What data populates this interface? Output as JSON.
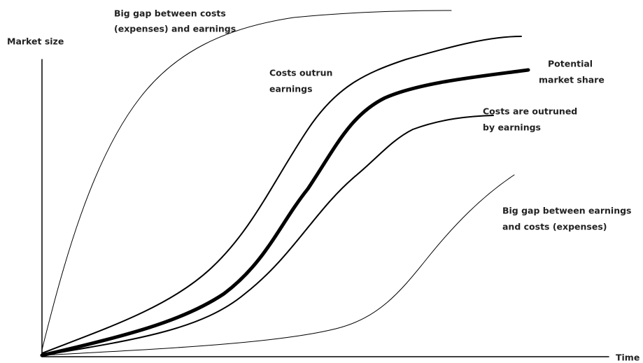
{
  "axes": {
    "y_label": "Market size",
    "x_label": "Time"
  },
  "annotations": {
    "big_gap_costs": [
      "Big gap between costs",
      "(expenses) and earnings"
    ],
    "costs_outrun": [
      "Costs outrun",
      "earnings"
    ],
    "potential_share": [
      "Potential",
      "market share"
    ],
    "costs_outruned": [
      "Costs are outruned",
      "by earnings"
    ],
    "big_gap_earnings": [
      "Big gap between earnings",
      "and costs (expenses)"
    ]
  }
}
